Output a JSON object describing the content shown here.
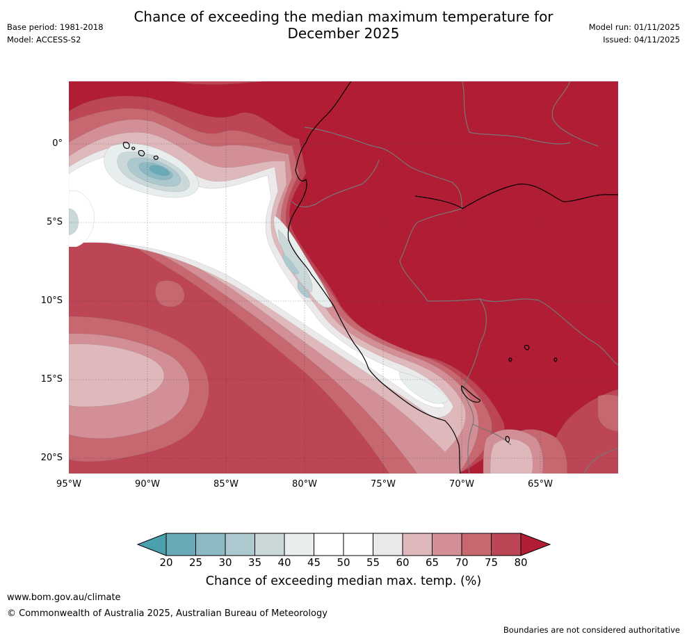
{
  "header": {
    "title_line1": "Chance of exceeding the median maximum temperature for",
    "title_line2": "December 2025",
    "base_period": "Base period: 1981-2018",
    "model": "Model: ACCESS-S2",
    "model_run": "Model run: 01/11/2025",
    "issued": "Issued: 04/11/2025"
  },
  "map": {
    "lat_labels": [
      "0°",
      "5°S",
      "10°S",
      "15°S",
      "20°S"
    ],
    "lon_labels": [
      "95°W",
      "90°W",
      "85°W",
      "80°W",
      "75°W",
      "70°W",
      "65°W"
    ],
    "colors": {
      "c20": "#4aa0ad",
      "c25": "#6aaab7",
      "c30": "#8db9c4",
      "c35": "#acc9cf",
      "c40": "#cbd8da",
      "c45": "#e8edee",
      "c50": "#ffffff",
      "c55": "#ffffff",
      "c60": "#ebe9e9",
      "c65": "#dfb8bc",
      "c70": "#d38f96",
      "c75": "#c76770",
      "c80": "#bc4655",
      "c85": "#b21d36"
    }
  },
  "colorbar": {
    "labels": [
      "20",
      "25",
      "30",
      "35",
      "40",
      "45",
      "50",
      "55",
      "60",
      "65",
      "70",
      "75",
      "80"
    ],
    "title": "Chance of exceeding median max. temp. (%)"
  },
  "footer": {
    "website": "www.bom.gov.au/climate",
    "copyright": "© Commonwealth of Australia 2025, Australian Bureau of Meteorology",
    "disclaimer": "Boundaries are not considered authoritative"
  }
}
